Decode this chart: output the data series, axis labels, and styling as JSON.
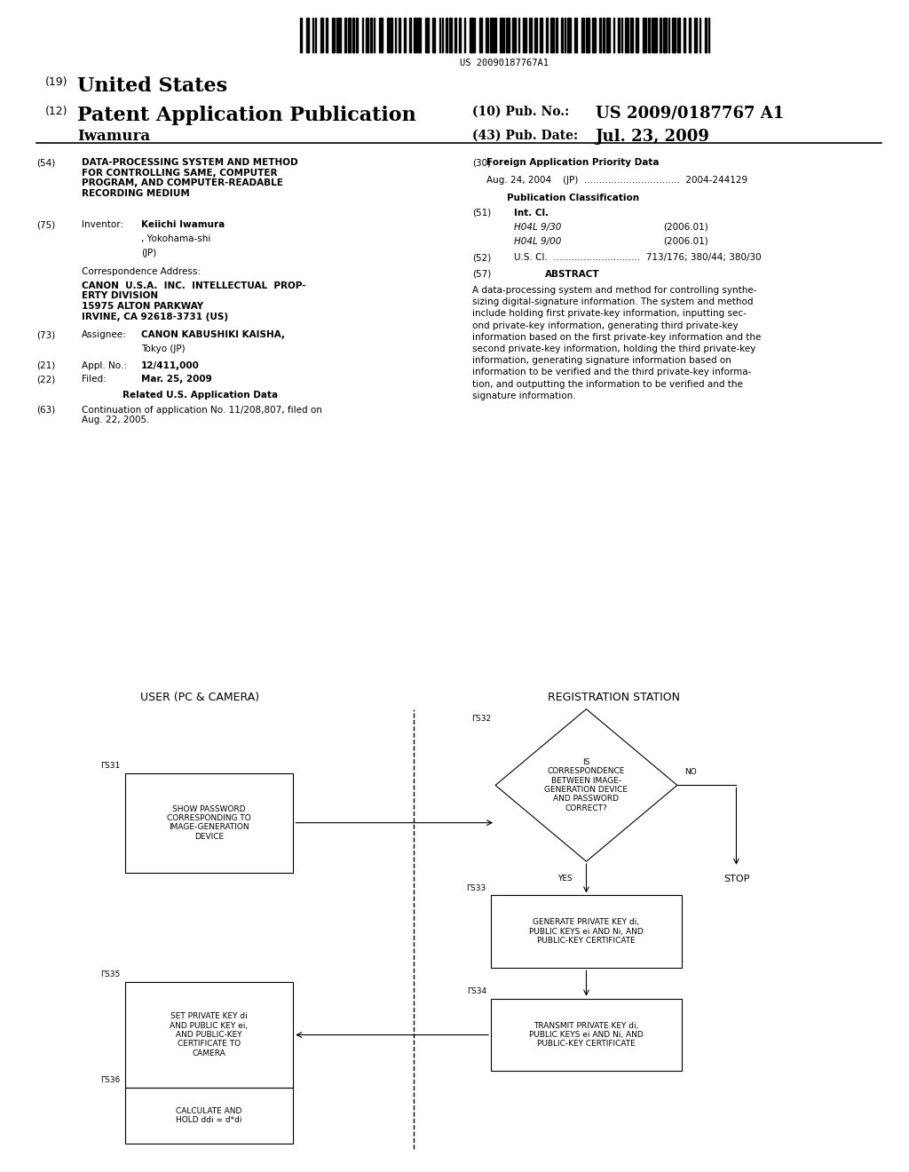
{
  "bg_color": "#ffffff",
  "barcode_text": "US 20090187767A1",
  "header": {
    "country_prefix": "(19)",
    "country": "United States",
    "type_prefix": "(12)",
    "type": "Patent Application Publication",
    "pub_no_prefix": "(10) Pub. No.:",
    "pub_no": "US 2009/0187767 A1",
    "inventor": "Iwamura",
    "date_prefix": "(43) Pub. Date:",
    "date": "Jul. 23, 2009"
  },
  "diagram": {
    "left_label": "USER (PC & CAMERA)",
    "right_label": "REGISTRATION STATION"
  }
}
